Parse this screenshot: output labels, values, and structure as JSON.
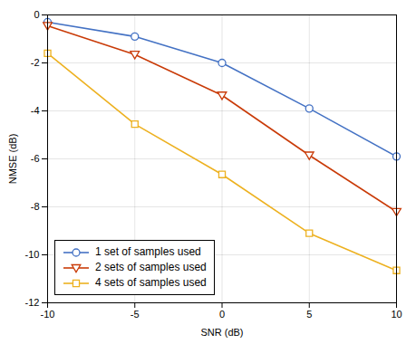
{
  "chart_data": {
    "type": "line",
    "xlabel": "SNR (dB)",
    "ylabel": "NMSE (dB)",
    "x": [
      -10,
      -5,
      0,
      5,
      10
    ],
    "series": [
      {
        "name": "1 set of samples used",
        "color": "#4472C4",
        "marker": "circle",
        "values": [
          -0.3,
          -0.9,
          -2.0,
          -3.9,
          -5.9
        ]
      },
      {
        "name": "2 sets of samples used",
        "color": "#C93B08",
        "marker": "triangle-down",
        "values": [
          -0.45,
          -1.65,
          -3.35,
          -5.85,
          -8.2
        ]
      },
      {
        "name": "4 sets of samples used",
        "color": "#EDB120",
        "marker": "square",
        "values": [
          -1.6,
          -4.55,
          -6.65,
          -9.1,
          -10.65
        ]
      }
    ],
    "xlim": [
      -10,
      10
    ],
    "ylim": [
      -12,
      0
    ],
    "xticks": [
      -10,
      -5,
      0,
      5,
      10
    ],
    "yticks": [
      0,
      -2,
      -4,
      -6,
      -8,
      -10,
      -12
    ],
    "grid": true,
    "legend": "lower left"
  }
}
